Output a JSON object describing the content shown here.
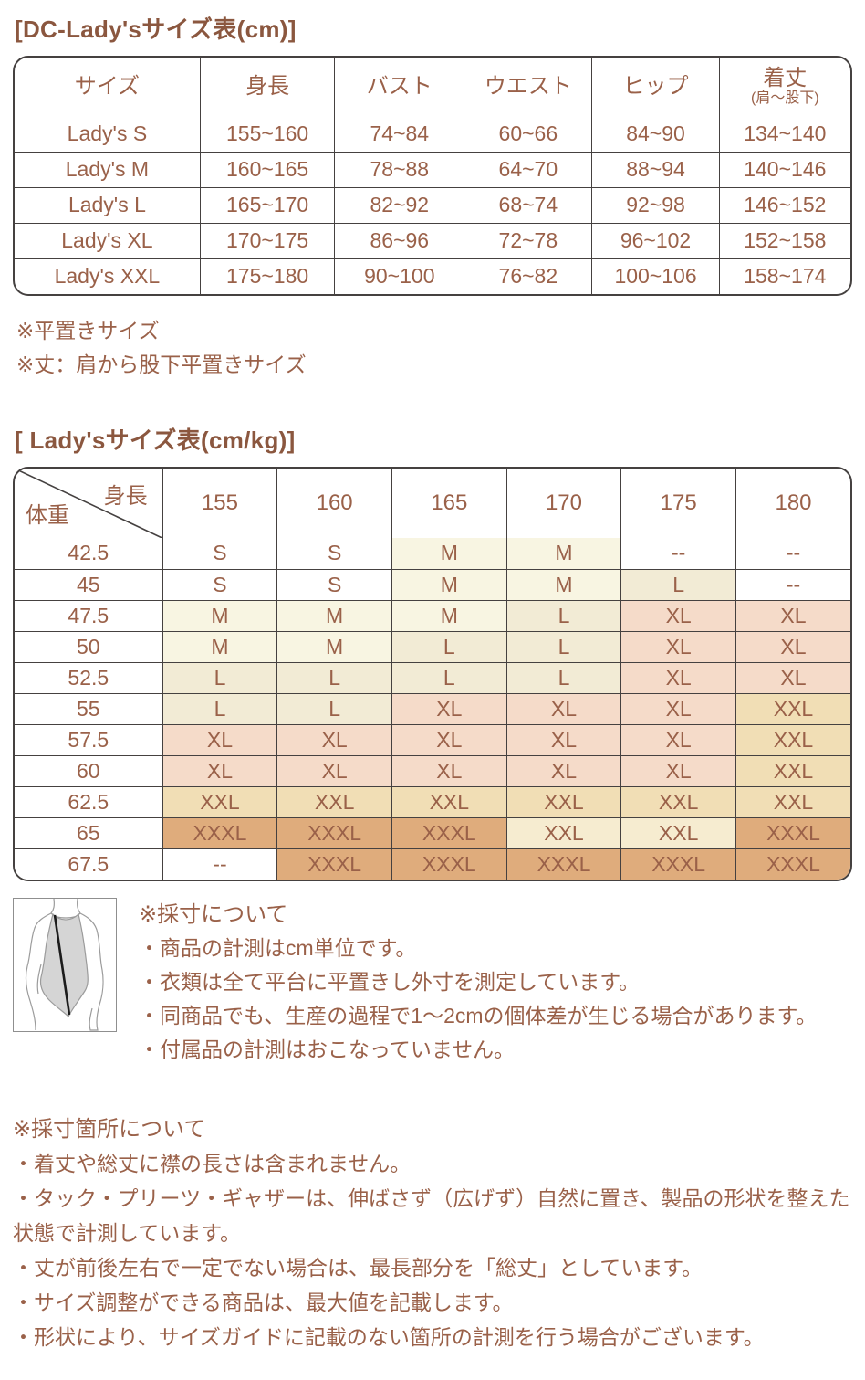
{
  "page": {
    "text_color": "#9a6149",
    "title_color": "#8b573f",
    "grid_color": "#454140"
  },
  "table1": {
    "title": "[DC-Lady'sサイズ表(cm)]",
    "headers": [
      "サイズ",
      "身長",
      "バスト",
      "ウエスト",
      "ヒップ"
    ],
    "length_header": {
      "main": "着丈",
      "sub": "(肩～股下)"
    },
    "rows": [
      [
        "Lady's S",
        "155~160",
        "74~84",
        "60~66",
        "84~90",
        "134~140"
      ],
      [
        "Lady's M",
        "160~165",
        "78~88",
        "64~70",
        "88~94",
        "140~146"
      ],
      [
        "Lady's L",
        "165~170",
        "82~92",
        "68~74",
        "92~98",
        "146~152"
      ],
      [
        "Lady's XL",
        "170~175",
        "86~96",
        "72~78",
        "96~102",
        "152~158"
      ],
      [
        "Lady's XXL",
        "175~180",
        "90~100",
        "76~82",
        "100~106",
        "158~174"
      ]
    ],
    "footnotes": [
      "※平置きサイズ",
      "※丈：肩から股下平置きサイズ"
    ]
  },
  "table2": {
    "title": "[ Lady'sサイズ表(cm/kg)]",
    "corner": {
      "top": "身長",
      "bottom": "体重"
    },
    "columns": [
      "155",
      "160",
      "165",
      "170",
      "175",
      "180"
    ],
    "rows": [
      {
        "weight": "42.5",
        "cells": [
          [
            "S",
            "s"
          ],
          [
            "S",
            "s"
          ],
          [
            "M",
            "m"
          ],
          [
            "M",
            "m"
          ],
          [
            "--",
            "none"
          ],
          [
            "--",
            "none"
          ]
        ]
      },
      {
        "weight": "45",
        "cells": [
          [
            "S",
            "s"
          ],
          [
            "S",
            "s"
          ],
          [
            "M",
            "m"
          ],
          [
            "M",
            "m"
          ],
          [
            "L",
            "l"
          ],
          [
            "--",
            "none"
          ]
        ]
      },
      {
        "weight": "47.5",
        "cells": [
          [
            "M",
            "m"
          ],
          [
            "M",
            "m"
          ],
          [
            "M",
            "m"
          ],
          [
            "L",
            "l"
          ],
          [
            "XL",
            "xl"
          ],
          [
            "XL",
            "xl"
          ]
        ]
      },
      {
        "weight": "50",
        "cells": [
          [
            "M",
            "m"
          ],
          [
            "M",
            "m"
          ],
          [
            "L",
            "l"
          ],
          [
            "L",
            "l"
          ],
          [
            "XL",
            "xl"
          ],
          [
            "XL",
            "xl"
          ]
        ]
      },
      {
        "weight": "52.5",
        "cells": [
          [
            "L",
            "l"
          ],
          [
            "L",
            "l"
          ],
          [
            "L",
            "l"
          ],
          [
            "L",
            "l"
          ],
          [
            "XL",
            "xl"
          ],
          [
            "XL",
            "xl"
          ]
        ]
      },
      {
        "weight": "55",
        "cells": [
          [
            "L",
            "l"
          ],
          [
            "L",
            "l"
          ],
          [
            "XL",
            "xl"
          ],
          [
            "XL",
            "xl"
          ],
          [
            "XL",
            "xl"
          ],
          [
            "XXL",
            "xxl"
          ]
        ]
      },
      {
        "weight": "57.5",
        "cells": [
          [
            "XL",
            "xl"
          ],
          [
            "XL",
            "xl"
          ],
          [
            "XL",
            "xl"
          ],
          [
            "XL",
            "xl"
          ],
          [
            "XL",
            "xl"
          ],
          [
            "XXL",
            "xxl"
          ]
        ]
      },
      {
        "weight": "60",
        "cells": [
          [
            "XL",
            "xl"
          ],
          [
            "XL",
            "xl"
          ],
          [
            "XL",
            "xl"
          ],
          [
            "XL",
            "xl"
          ],
          [
            "XL",
            "xl"
          ],
          [
            "XXL",
            "xxl"
          ]
        ]
      },
      {
        "weight": "62.5",
        "cells": [
          [
            "XXL",
            "xxl"
          ],
          [
            "XXL",
            "xxl"
          ],
          [
            "XXL",
            "xxl"
          ],
          [
            "XXL",
            "xxl"
          ],
          [
            "XXL",
            "xxl"
          ],
          [
            "XXL",
            "xxl"
          ]
        ]
      },
      {
        "weight": "65",
        "cells": [
          [
            "XXXL",
            "xxxl"
          ],
          [
            "XXXL",
            "xxxl"
          ],
          [
            "XXXL",
            "xxxl"
          ],
          [
            "XXL",
            "xxl_light"
          ],
          [
            "XXL",
            "xxl_light"
          ],
          [
            "XXXL",
            "xxxl"
          ]
        ]
      },
      {
        "weight": "67.5",
        "cells": [
          [
            "--",
            "none"
          ],
          [
            "XXXL",
            "xxxl"
          ],
          [
            "XXXL",
            "xxxl"
          ],
          [
            "XXXL",
            "xxxl"
          ],
          [
            "XXXL",
            "xxxl"
          ],
          [
            "XXXL",
            "xxxl"
          ]
        ]
      }
    ],
    "cell_colors": {
      "s": "#ffffff",
      "m": "#f8f5e2",
      "l": "#f2ebd5",
      "xl": "#f5dbc9",
      "xxl": "#f1deb5",
      "xxl_light": "#f6ecd0",
      "xxxl": "#dfac7c",
      "none": "#ffffff"
    }
  },
  "measure_notes": {
    "heading": "※採寸について",
    "items": [
      "・商品の計測はcm単位です。",
      "・衣類は全て平台に平置きし外寸を測定しています。",
      "・同商品でも、生産の過程で1～2cmの個体差が生じる場合があります。",
      "・付属品の計測はおこなっていません。"
    ]
  },
  "location_notes": {
    "heading": "※採寸箇所について",
    "items": [
      "・着丈や総丈に襟の長さは含まれません。",
      "・タック・プリーツ・ギャザーは、伸ばさず（広げず）自然に置き、製品の形状を整えた状態で計測しています。",
      "・丈が前後左右で一定でない場合は、最長部分を「総丈」としています。",
      "・サイズ調整ができる商品は、最大値を記載します。",
      "・形状により、サイズガイドに記載のない箇所の計測を行う場合がございます。"
    ]
  }
}
